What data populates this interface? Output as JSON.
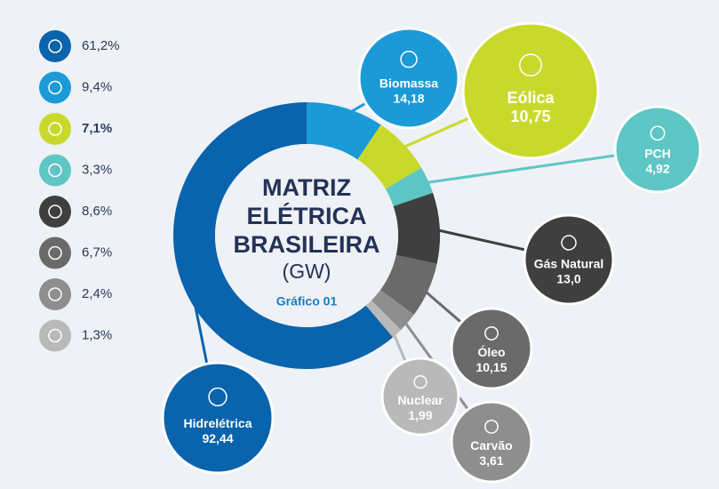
{
  "chart_data": {
    "type": "pie",
    "title_lines": [
      "MATRIZ",
      "ELÉTRICA",
      "BRASILEIRA"
    ],
    "subtitle": "(GW)",
    "caption": "Gráfico 01",
    "categories": [
      "Hidrelétrica",
      "Biomassa",
      "Eólica",
      "PCH",
      "Gás Natural",
      "Óleo",
      "Carvão",
      "Nuclear"
    ],
    "values": [
      92.44,
      14.18,
      10.75,
      4.92,
      13.0,
      10.15,
      3.61,
      1.99
    ],
    "value_labels": [
      "92,44",
      "14,18",
      "10,75",
      "4,92",
      "13,0",
      "10,15",
      "3,61",
      "1,99"
    ],
    "percents": [
      61.2,
      9.4,
      7.1,
      3.3,
      8.6,
      6.7,
      2.4,
      1.3
    ],
    "percent_labels": [
      "61,2%",
      "9,4%",
      "7,1%",
      "3,3%",
      "8,6%",
      "6,7%",
      "2,4%",
      "1,3%"
    ],
    "colors": [
      "#0a63ad",
      "#1c9ad8",
      "#c9d92c",
      "#5ec6c4",
      "#3f3f40",
      "#6a6a6b",
      "#8e8e8f",
      "#b9b9ba"
    ]
  }
}
